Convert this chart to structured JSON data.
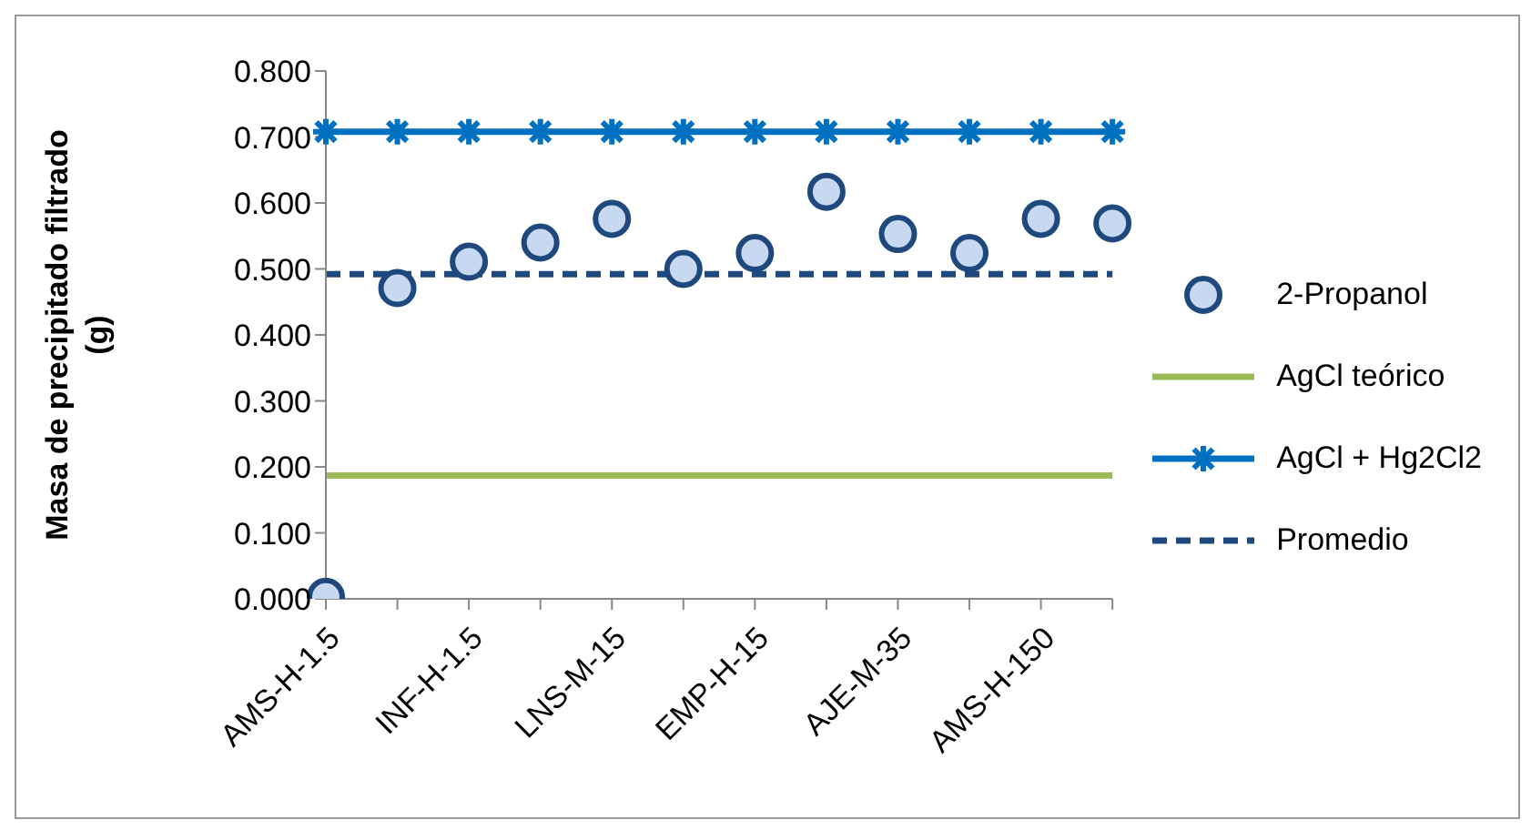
{
  "chart_data": {
    "type": "scatter",
    "ylabel": "Masa de precipitado filtrado (g)",
    "categories": [
      "AMS-H-1.5",
      null,
      "INF-H-1.5",
      null,
      "LNS-M-15",
      null,
      "EMP-H-15",
      null,
      "AJE-M-35",
      null,
      "AMS-H-150",
      null
    ],
    "series": [
      {
        "name": "2-Propanol",
        "marker": "circle",
        "color": "#1f497d",
        "values": [
          0.003,
          0.471,
          0.511,
          0.54,
          0.576,
          0.5,
          0.524,
          0.617,
          0.553,
          0.524,
          0.576,
          0.569
        ]
      },
      {
        "name": "AgCl teórico",
        "type": "line",
        "marker": "none",
        "line_style": "solid",
        "color": "#9bbb59",
        "values": [
          0.187,
          0.187,
          0.187,
          0.187,
          0.187,
          0.187,
          0.187,
          0.187,
          0.187,
          0.187,
          0.187,
          0.187
        ]
      },
      {
        "name": "AgCl + Hg2Cl2",
        "type": "line",
        "marker": "cross",
        "line_style": "solid",
        "color": "#0070c0",
        "values": [
          0.708,
          0.708,
          0.708,
          0.708,
          0.708,
          0.708,
          0.708,
          0.708,
          0.708,
          0.708,
          0.708,
          0.708
        ]
      },
      {
        "name": "Promedio",
        "type": "line",
        "marker": "none",
        "line_style": "dashed",
        "color": "#1f497d",
        "values": [
          0.492,
          0.492,
          0.492,
          0.492,
          0.492,
          0.492,
          0.492,
          0.492,
          0.492,
          0.492,
          0.492,
          0.492
        ]
      }
    ],
    "ylim": [
      0,
      0.8
    ],
    "yticks": [
      {
        "value": 0,
        "label": "0.000"
      },
      {
        "value": 0.1,
        "label": "0.100"
      },
      {
        "value": 0.2,
        "label": "0.200"
      },
      {
        "value": 0.3,
        "label": "0.300"
      },
      {
        "value": 0.4,
        "label": "0.400"
      },
      {
        "value": 0.5,
        "label": "0.500"
      },
      {
        "value": 0.6,
        "label": "0.600"
      },
      {
        "value": 0.7,
        "label": "0.700"
      },
      {
        "value": 0.8,
        "label": "0.800"
      }
    ],
    "grid": false,
    "legend": "right"
  }
}
